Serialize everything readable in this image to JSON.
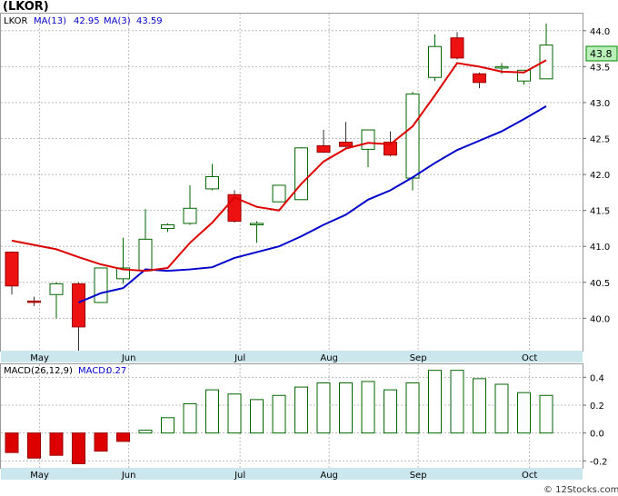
{
  "title": "(LKOR)",
  "footer": "© 12Stocks.com",
  "colors": {
    "up_candle": "#006600",
    "down_candle": "#ee1111",
    "ma13": "#0000cc",
    "ma3": "#dd0000",
    "macd_bar": "#006600",
    "macd_bar_neg": "#dd0000",
    "axis_band": "#cce6ee",
    "last_price_bg": "#b8f0b8",
    "legend_blue": "#0000cc"
  },
  "chart_data": [
    {
      "type": "candlestick",
      "legend": {
        "ticker": "LKOR",
        "ma13_label": "MA(13)",
        "ma13_value": "42.95",
        "ma3_label": "MA(3)",
        "ma3_value": "43.59"
      },
      "ylim": [
        39.55,
        44.25
      ],
      "y_ticks": [
        40.0,
        40.5,
        41.0,
        41.5,
        42.0,
        42.5,
        43.0,
        43.5,
        44.0
      ],
      "y_tick_labels": [
        "40.0",
        "40.5",
        "41.0",
        "41.5",
        "42.0",
        "42.5",
        "43.0",
        "43.5",
        "44.0"
      ],
      "x_labels": [
        "May",
        "Jun",
        "Jul",
        "Aug",
        "Sep",
        "Oct"
      ],
      "x_label_index": [
        1.25,
        5.25,
        10.25,
        14.25,
        18.25,
        23.25
      ],
      "last_price": "43.8",
      "candles": [
        {
          "o": 40.92,
          "h": 40.93,
          "c": 40.45,
          "l": 40.33
        },
        {
          "o": 40.24,
          "h": 40.3,
          "c": 40.23,
          "l": 40.17
        },
        {
          "o": 40.33,
          "h": 40.5,
          "c": 40.48,
          "l": 40.0
        },
        {
          "o": 40.48,
          "h": 40.5,
          "c": 39.88,
          "l": 39.55
        },
        {
          "o": 40.22,
          "h": 40.7,
          "c": 40.7,
          "l": 40.22
        },
        {
          "o": 40.55,
          "h": 41.12,
          "c": 40.7,
          "l": 40.48
        },
        {
          "o": 40.66,
          "h": 41.52,
          "c": 41.1,
          "l": 40.66
        },
        {
          "o": 41.25,
          "h": 41.32,
          "c": 41.3,
          "l": 41.2
        },
        {
          "o": 41.32,
          "h": 41.85,
          "c": 41.53,
          "l": 41.3
        },
        {
          "o": 41.8,
          "h": 42.15,
          "c": 41.97,
          "l": 41.78
        },
        {
          "o": 41.72,
          "h": 41.78,
          "c": 41.35,
          "l": 41.33
        },
        {
          "o": 41.3,
          "h": 41.35,
          "c": 41.32,
          "l": 41.05
        },
        {
          "o": 41.62,
          "h": 41.85,
          "c": 41.85,
          "l": 41.62
        },
        {
          "o": 41.65,
          "h": 42.38,
          "c": 42.37,
          "l": 41.65
        },
        {
          "o": 42.4,
          "h": 42.62,
          "c": 42.31,
          "l": 42.3
        },
        {
          "o": 42.45,
          "h": 42.73,
          "c": 42.39,
          "l": 42.37
        },
        {
          "o": 42.35,
          "h": 42.62,
          "c": 42.62,
          "l": 42.1
        },
        {
          "o": 42.45,
          "h": 42.6,
          "c": 42.27,
          "l": 42.25
        },
        {
          "o": 41.95,
          "h": 43.15,
          "c": 43.12,
          "l": 41.78
        },
        {
          "o": 43.35,
          "h": 43.95,
          "c": 43.78,
          "l": 43.3
        },
        {
          "o": 43.9,
          "h": 43.98,
          "c": 43.62,
          "l": 43.6
        },
        {
          "o": 43.4,
          "h": 43.42,
          "c": 43.28,
          "l": 43.2
        },
        {
          "o": 43.48,
          "h": 43.55,
          "c": 43.5,
          "l": 43.4
        },
        {
          "o": 43.3,
          "h": 43.45,
          "c": 43.45,
          "l": 43.25
        },
        {
          "o": 43.33,
          "h": 44.1,
          "c": 43.8,
          "l": 43.33
        }
      ],
      "ma13_points": [
        [
          3,
          40.22
        ],
        [
          4,
          40.35
        ],
        [
          5,
          40.42
        ],
        [
          6,
          40.68
        ],
        [
          7,
          40.66
        ],
        [
          8,
          40.68
        ],
        [
          9,
          40.71
        ],
        [
          10,
          40.84
        ],
        [
          11,
          40.92
        ],
        [
          12,
          41.0
        ],
        [
          13,
          41.14
        ],
        [
          14,
          41.3
        ],
        [
          15,
          41.44
        ],
        [
          16,
          41.65
        ],
        [
          17,
          41.78
        ],
        [
          18,
          41.96
        ],
        [
          19,
          42.16
        ],
        [
          20,
          42.34
        ],
        [
          21,
          42.47
        ],
        [
          22,
          42.6
        ],
        [
          23,
          42.77
        ],
        [
          24,
          42.95
        ]
      ],
      "ma3_points": [
        [
          0,
          41.08
        ],
        [
          1,
          41.02
        ],
        [
          2,
          40.96
        ],
        [
          3,
          40.85
        ],
        [
          4,
          40.75
        ],
        [
          5,
          40.68
        ],
        [
          6,
          40.66
        ],
        [
          7,
          40.7
        ],
        [
          8,
          41.05
        ],
        [
          9,
          41.33
        ],
        [
          10,
          41.68
        ],
        [
          11,
          41.55
        ],
        [
          12,
          41.5
        ],
        [
          13,
          41.87
        ],
        [
          14,
          42.18
        ],
        [
          15,
          42.36
        ],
        [
          16,
          42.44
        ],
        [
          17,
          42.42
        ],
        [
          18,
          42.67
        ],
        [
          19,
          43.1
        ],
        [
          20,
          43.55
        ],
        [
          21,
          43.5
        ],
        [
          22,
          43.43
        ],
        [
          23,
          43.42
        ],
        [
          24,
          43.59
        ]
      ]
    },
    {
      "type": "bar",
      "legend": {
        "label": "MACD(26,12,9)",
        "value_label": "MACD:",
        "value": "0.27"
      },
      "ylim": [
        -0.25,
        0.5
      ],
      "y_ticks": [
        -0.2,
        0.0,
        0.2,
        0.4
      ],
      "y_tick_labels": [
        "-0.2",
        "0.0",
        "0.2",
        "0.4"
      ],
      "x_labels": [
        "May",
        "Jun",
        "Jul",
        "Aug",
        "Sep",
        "Oct"
      ],
      "values": [
        -0.14,
        -0.18,
        -0.16,
        -0.22,
        -0.13,
        -0.06,
        0.02,
        0.11,
        0.21,
        0.31,
        0.28,
        0.24,
        0.27,
        0.33,
        0.36,
        0.36,
        0.37,
        0.31,
        0.36,
        0.45,
        0.45,
        0.39,
        0.35,
        0.29,
        0.27
      ]
    }
  ]
}
